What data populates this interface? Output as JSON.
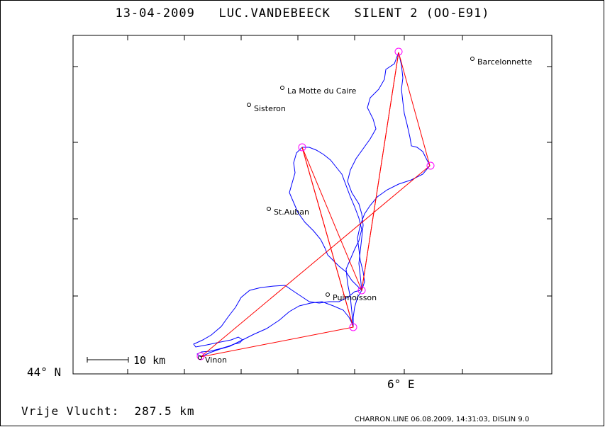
{
  "title": {
    "date": "13-04-2009",
    "pilot": "LUC.VANDEBEECK",
    "glider": "SILENT 2 (OO-E91)"
  },
  "places": [
    {
      "name": "Barcelonnette"
    },
    {
      "name": "La Motte du Caire"
    },
    {
      "name": "Sisteron"
    },
    {
      "name": "St.Auban"
    },
    {
      "name": "Puimoisson"
    },
    {
      "name": "Vinon"
    }
  ],
  "axes": {
    "lat_label": "44° N",
    "lon_label": "6° E"
  },
  "scale": {
    "label": "10 km"
  },
  "footer": {
    "free_flight": "Vrije Vlucht:  287.5 km",
    "credit": "CHARRON.LINE 06.08.2009, 14:31:03, DISLIN 9.0"
  },
  "colors": {
    "track": "#0000ff",
    "course": "#ff0000",
    "turnpoint": "#ff00ff"
  }
}
